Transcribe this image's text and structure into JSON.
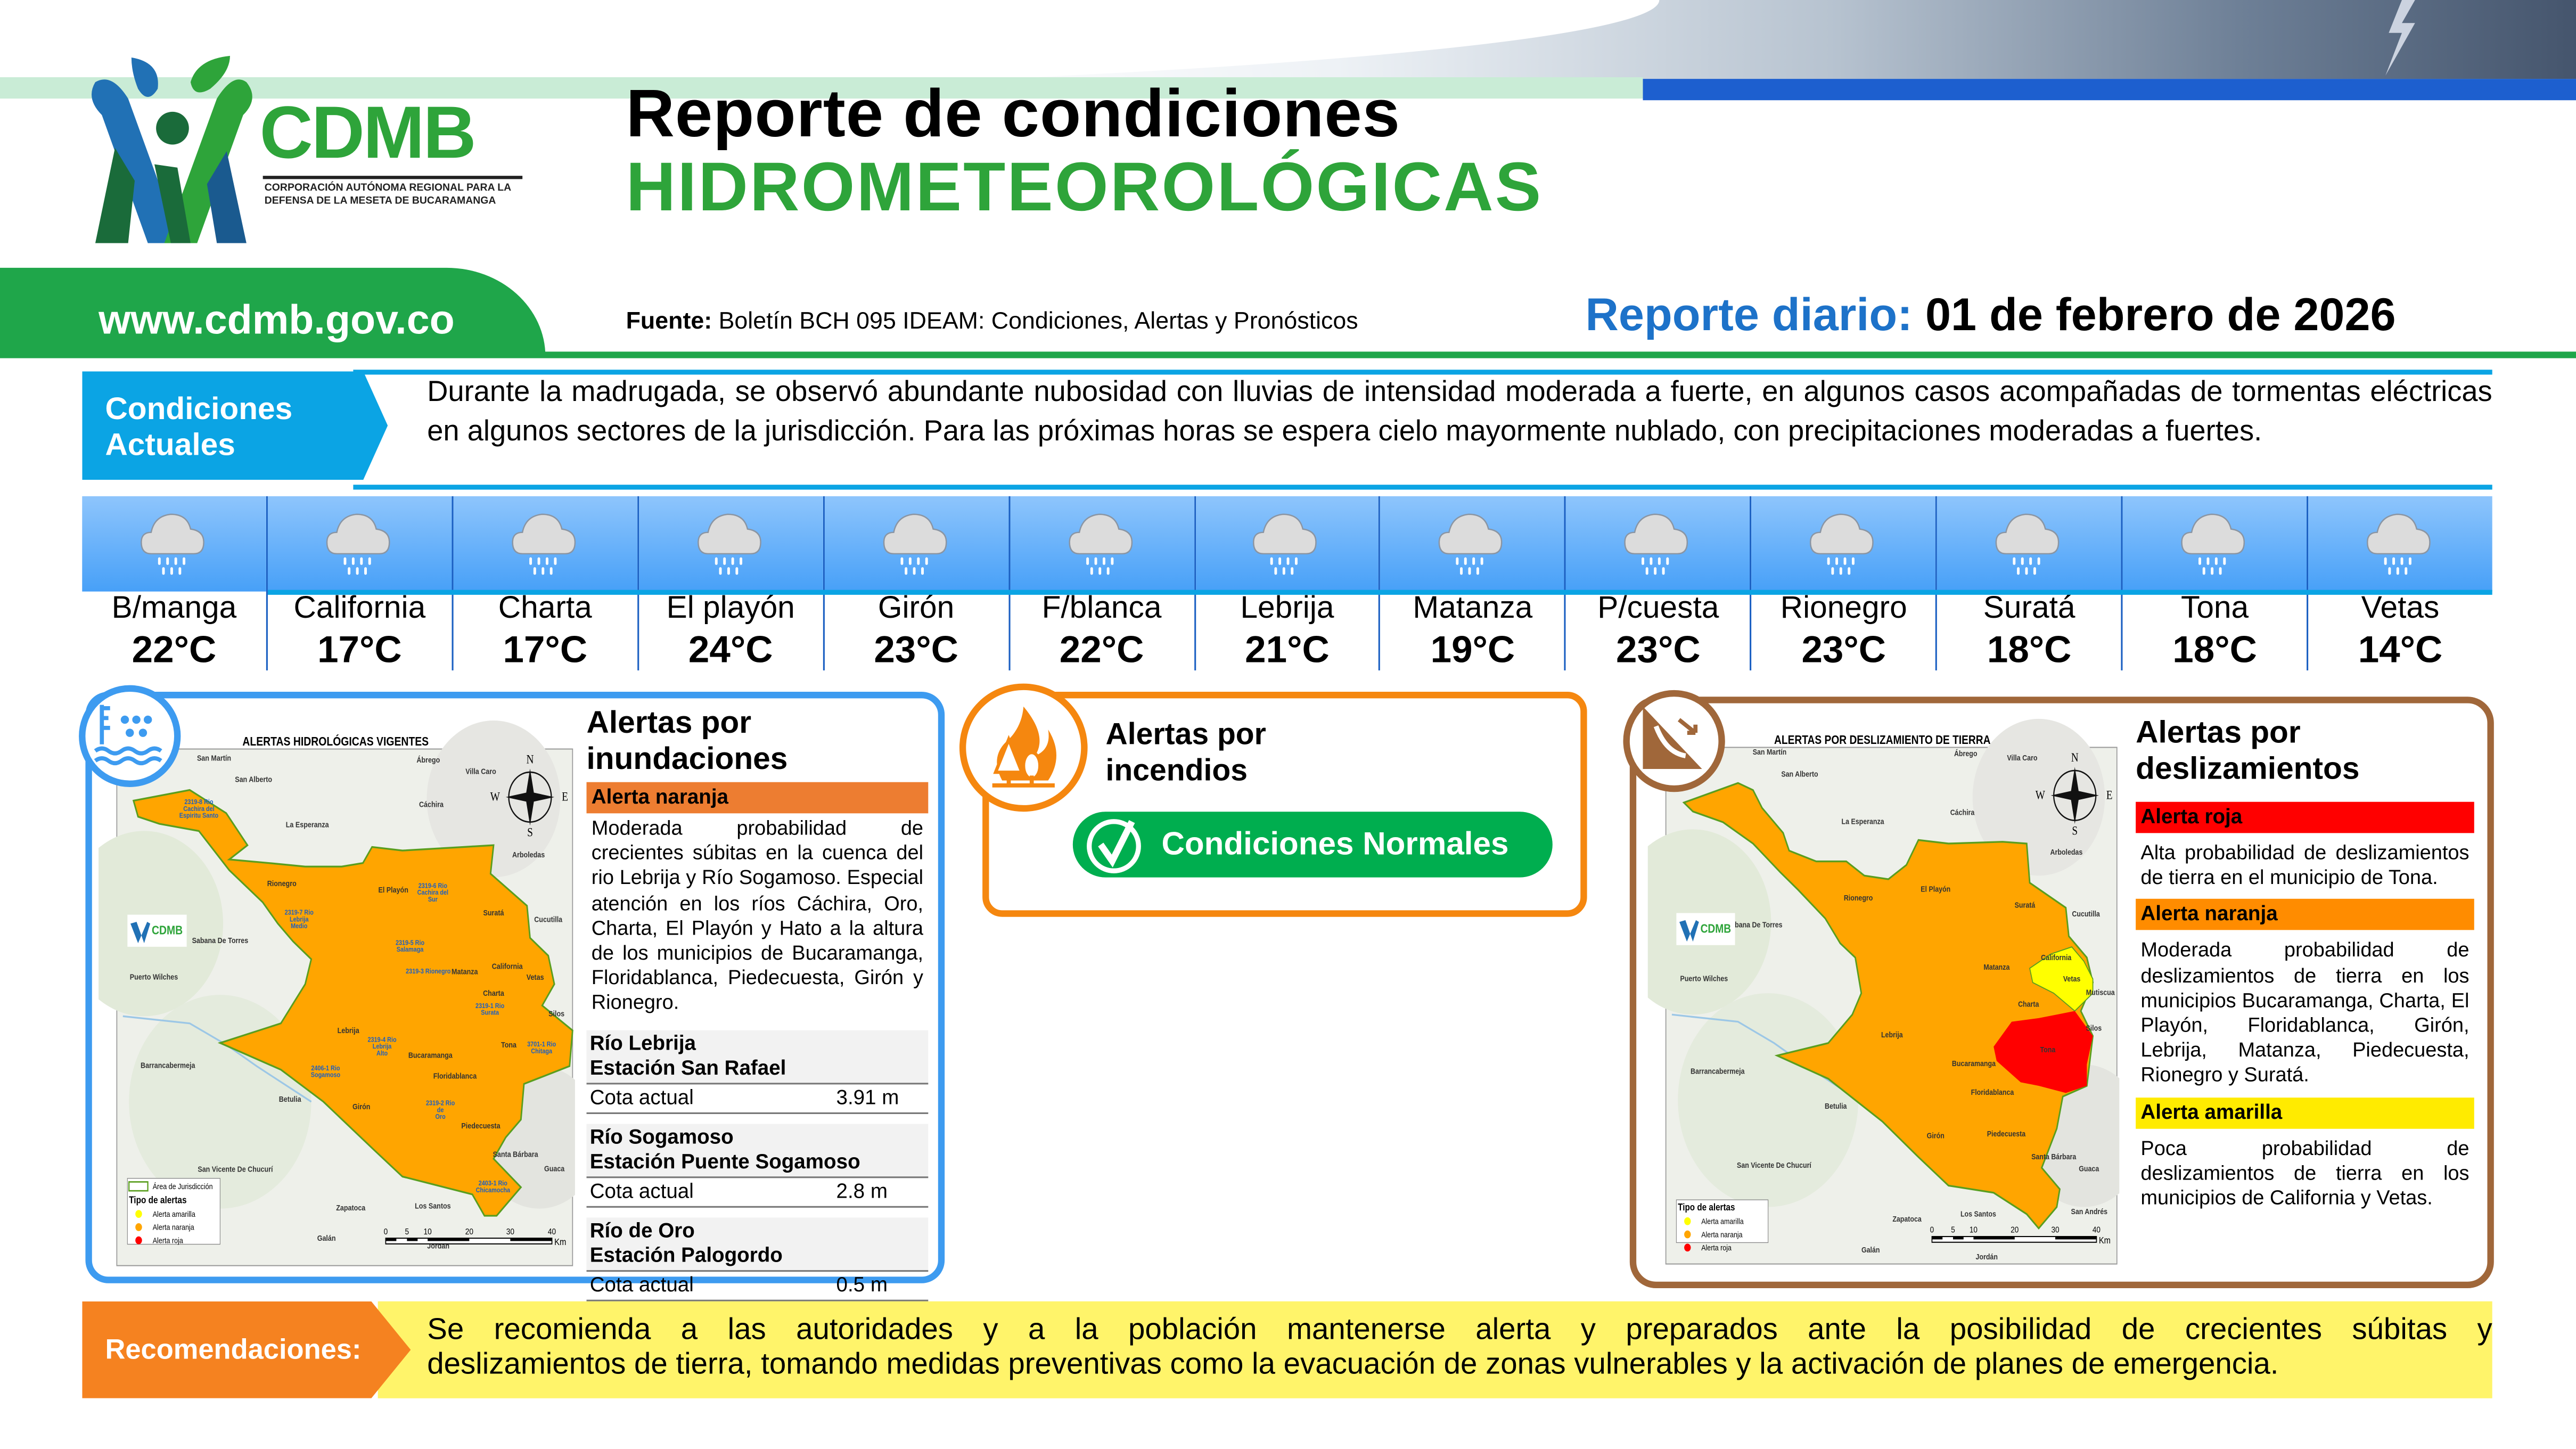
{
  "brand": {
    "acronym": "CDMB",
    "full_name_line1": "CORPORACIÓN AUTÓNOMA REGIONAL PARA LA",
    "full_name_line2": "DEFENSA DE LA MESETA DE BUCARAMANGA",
    "website": "www.cdmb.gov.co",
    "green": "#1fa64a",
    "blue": "#1d72c9"
  },
  "header": {
    "title_line1": "Reporte de condiciones",
    "title_line2": "HIDROMETEOROLÓGICAS",
    "source_label": "Fuente:",
    "source_text": "Boletín BCH 095 IDEAM: Condiciones, Alertas y Pronósticos",
    "report_label": "Reporte diario:",
    "report_date": "01 de febrero de 2026"
  },
  "current": {
    "label_line1": "Condiciones",
    "label_line2": "Actuales",
    "text": "Durante la madrugada, se observó abundante nubosidad con lluvias de intensidad moderada a fuerte, en algunos casos acompañadas de tormentas eléctricas en algunos sectores de la jurisdicción. Para las próximas horas se espera cielo mayormente nublado, con precipitaciones moderadas a fuertes."
  },
  "weather": [
    {
      "town": "B/manga",
      "temp": "22°C",
      "icon": "rain-cloud-icon"
    },
    {
      "town": "California",
      "temp": "17°C",
      "icon": "rain-cloud-icon"
    },
    {
      "town": "Charta",
      "temp": "17°C",
      "icon": "rain-cloud-icon"
    },
    {
      "town": "El playón",
      "temp": "24°C",
      "icon": "rain-cloud-icon"
    },
    {
      "town": "Girón",
      "temp": "23°C",
      "icon": "rain-cloud-icon"
    },
    {
      "town": "F/blanca",
      "temp": "22°C",
      "icon": "rain-cloud-icon"
    },
    {
      "town": "Lebrija",
      "temp": "21°C",
      "icon": "rain-cloud-icon"
    },
    {
      "town": "Matanza",
      "temp": "19°C",
      "icon": "rain-cloud-icon"
    },
    {
      "town": "P/cuesta",
      "temp": "23°C",
      "icon": "rain-cloud-icon"
    },
    {
      "town": "Rionegro",
      "temp": "23°C",
      "icon": "rain-cloud-icon"
    },
    {
      "town": "Suratá",
      "temp": "18°C",
      "icon": "rain-cloud-icon"
    },
    {
      "town": "Tona",
      "temp": "18°C",
      "icon": "rain-cloud-icon"
    },
    {
      "town": "Vetas",
      "temp": "14°C",
      "icon": "rain-cloud-icon"
    }
  ],
  "floods": {
    "title_line1": "Alertas por",
    "title_line2": "inundaciones",
    "alert_label": "Alerta naranja",
    "alert_color": "#ed7d31",
    "alert_text": "Moderada probabilidad de crecientes súbitas en la cuenca del rio Lebrija y Río Sogamoso. Especial atención en los ríos Cáchira, Oro, Charta, El Playón y Hato a la altura de los municipios de Bucaramanga, Floridablanca, Piedecuesta, Girón y Rionegro.",
    "stations": [
      {
        "river": "Río Lebrija",
        "station": "Estación San Rafael",
        "level_label": "Cota actual",
        "level": "3.91 m"
      },
      {
        "river": "Río Sogamoso",
        "station": "Estación Puente Sogamoso",
        "level_label": "Cota actual",
        "level": "2.8 m"
      },
      {
        "river": "Río de Oro",
        "station": "Estación Palogordo",
        "level_label": "Cota actual",
        "level": "0.5 m"
      }
    ],
    "map": {
      "title": "ALERTAS HIDROLÓGICAS VIGENTES",
      "places": [
        "San Martín",
        "San Alberto",
        "Ábrego",
        "Cáchira",
        "La Esperanza",
        "Arboledas",
        "Rionegro",
        "El Playón",
        "Suratá",
        "Cucutilla",
        "Sabana De Torres",
        "Puerto Wilches",
        "Matanza",
        "California",
        "Vetas",
        "Charta",
        "Silos",
        "Lebrija",
        "Tona",
        "Bucaramanga",
        "Barrancabermeja",
        "Floridablanca",
        "Betulia",
        "Girón",
        "Piedecuesta",
        "Santa Bárbara",
        "Guaca",
        "San Vicente De Chucurí",
        "Zapatoca",
        "Los Santos",
        "Galán",
        "Jordán",
        "Villa Caro"
      ],
      "rivers": [
        "2319-8 Rio Cachira del Espiritu Santo",
        "2319-7 Rio Lebrija Medio",
        "2319-6 Rio Cachira del Sur",
        "2319-5 Rio Salamaga",
        "2319-3 Rionegro",
        "2319-1 Rio Surata",
        "2319-4 Rio Lebrija Alto",
        "3701-1 Rio Chitaga",
        "2406-1 Rio Sogamoso",
        "2319-2 Rio de Oro",
        "2403-1 Rio Chicamocha"
      ],
      "legend_area": "Área de Jurisdicción",
      "legend_title": "Tipo de alertas",
      "legend_items": [
        {
          "label": "Alerta amarilla",
          "color": "#ffff00"
        },
        {
          "label": "Alerta naranja",
          "color": "#ffa500"
        },
        {
          "label": "Alerta roja",
          "color": "#ff0000"
        }
      ],
      "scale_ticks": [
        "0",
        "5",
        "10",
        "20",
        "30",
        "40"
      ],
      "scale_unit": "Km",
      "compass": [
        "N",
        "S",
        "E",
        "W"
      ]
    }
  },
  "fires": {
    "title_line1": "Alertas por",
    "title_line2": "incendios",
    "status": "Condiciones Normales",
    "status_color": "#00ae4f",
    "border_color": "#f5870f"
  },
  "landslides": {
    "title_line1": "Alertas por",
    "title_line2": "deslizamientos",
    "alerts": [
      {
        "label": "Alerta roja",
        "color": "#ff0000",
        "text": "Alta probabilidad de deslizamientos de tierra en el municipio de Tona."
      },
      {
        "label": "Alerta naranja",
        "color": "#ff8c00",
        "text": "Moderada probabilidad de deslizamientos de tierra en los municipios Bucaramanga, Charta, El Playón, Floridablanca, Girón, Lebrija, Matanza, Piedecuesta, Rionegro y Suratá."
      },
      {
        "label": "Alerta amarilla",
        "color": "#ffeb00",
        "text": "Poca probabilidad de deslizamientos de tierra en los municipios de California y Vetas."
      }
    ],
    "map": {
      "title": "ALERTAS POR DESLIZAMIENTO DE TIERRA",
      "places": [
        "San Martín",
        "San Alberto",
        "Ábrego",
        "Cáchira",
        "La Esperanza",
        "Arboledas",
        "Rionegro",
        "El Playón",
        "Suratá",
        "Cucutilla",
        "Sabana De Torres",
        "Puerto Wilches",
        "Matanza",
        "California",
        "Vetas",
        "Mutiscua",
        "Charta",
        "Silos",
        "Lebrija",
        "Tona",
        "Bucaramanga",
        "Barrancabermeja",
        "Floridablanca",
        "Betulia",
        "Girón",
        "Piedecuesta",
        "Santa Bárbara",
        "Guaca",
        "San Vicente De Chucurí",
        "Zapatoca",
        "Los Santos",
        "San Andrés",
        "Galán",
        "Jordán",
        "Villa Caro"
      ],
      "legend_title": "Tipo de alertas",
      "legend_items": [
        {
          "label": "Alerta amarilla",
          "color": "#ffff00"
        },
        {
          "label": "Alerta naranja",
          "color": "#ffa500"
        },
        {
          "label": "Alerta roja",
          "color": "#ff0000"
        }
      ],
      "scale_ticks": [
        "0",
        "5",
        "10",
        "20",
        "30",
        "40"
      ],
      "scale_unit": "Km",
      "compass": [
        "N",
        "S",
        "E",
        "W"
      ]
    }
  },
  "recommendations": {
    "label": "Recomendaciones:",
    "text_line1": "Se recomienda a las autoridades y a la población mantenerse alerta y preparados ante la posibilidad de crecientes súbitas y",
    "text_line2": "deslizamientos de tierra, tomando medidas preventivas como la evacuación de zonas vulnerables y la activación de planes de emergencia."
  }
}
